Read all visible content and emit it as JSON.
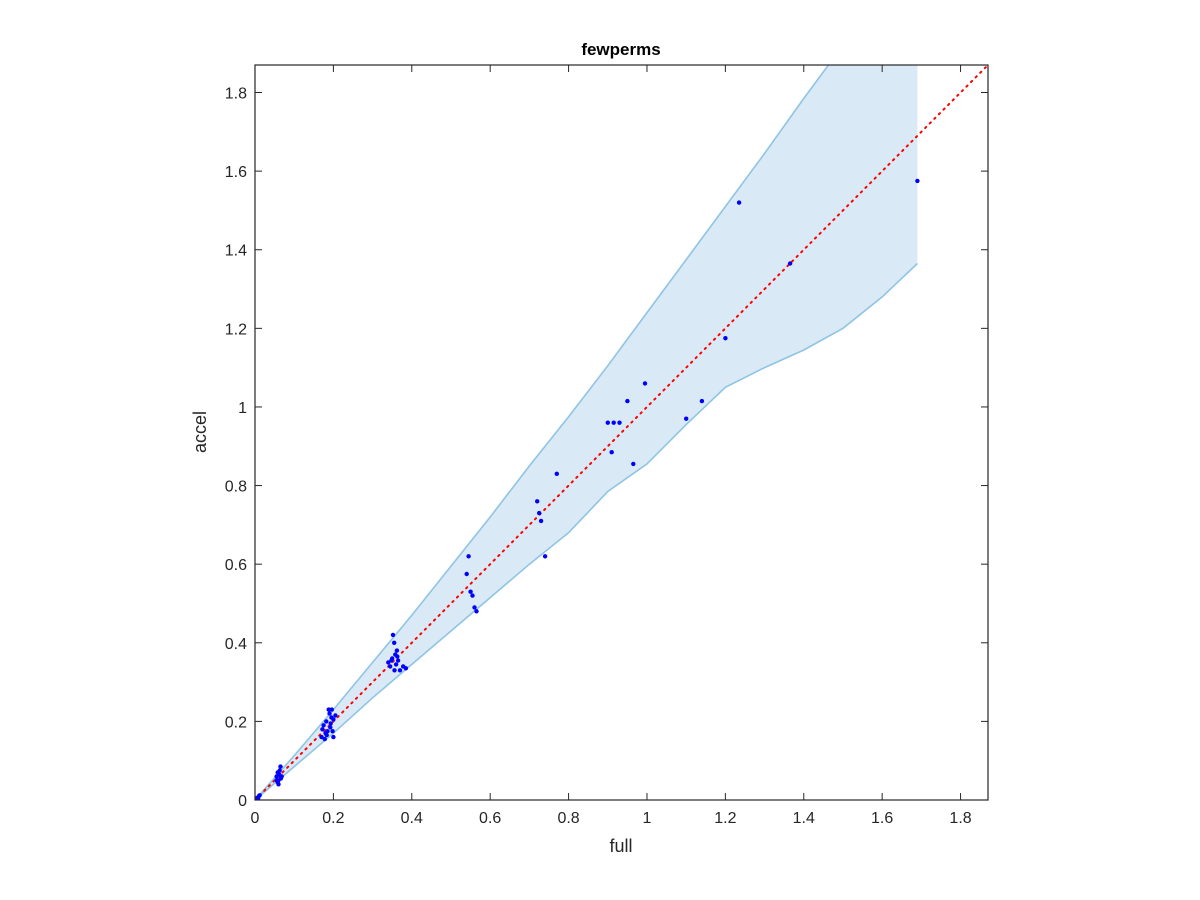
{
  "chart_data": {
    "type": "scatter",
    "title": "fewperms",
    "xlabel": "full",
    "ylabel": "accel",
    "xlim": [
      0,
      1.87
    ],
    "ylim": [
      0,
      1.87
    ],
    "grid": false,
    "x_ticks": [
      0,
      0.2,
      0.4,
      0.6,
      0.8,
      1,
      1.2,
      1.4,
      1.6,
      1.8
    ],
    "x_tick_labels": [
      "0",
      "0.2",
      "0.4",
      "0.6",
      "0.8",
      "1",
      "1.2",
      "1.4",
      "1.6",
      "1.8"
    ],
    "y_ticks": [
      0,
      0.2,
      0.4,
      0.6,
      0.8,
      1,
      1.2,
      1.4,
      1.6,
      1.8
    ],
    "y_tick_labels": [
      "0",
      "0.2",
      "0.4",
      "0.6",
      "0.8",
      "1",
      "1.2",
      "1.4",
      "1.6",
      "1.8"
    ],
    "colors": {
      "points": "#0000ff",
      "band_fill": "#d9e9f5",
      "band_edge": "#8fc4e4",
      "reference_line": "#ff0000",
      "axes": "#262626"
    },
    "reference_line": {
      "style": "dotted",
      "x": [
        0,
        1.87
      ],
      "y": [
        0,
        1.87
      ]
    },
    "band": {
      "upper": [
        [
          0,
          0
        ],
        [
          0.1,
          0.113
        ],
        [
          0.2,
          0.23
        ],
        [
          0.3,
          0.35
        ],
        [
          0.4,
          0.47
        ],
        [
          0.5,
          0.595
        ],
        [
          0.6,
          0.72
        ],
        [
          0.7,
          0.85
        ],
        [
          0.8,
          0.975
        ],
        [
          0.9,
          1.105
        ],
        [
          1.0,
          1.24
        ],
        [
          1.1,
          1.375
        ],
        [
          1.2,
          1.51
        ],
        [
          1.3,
          1.645
        ],
        [
          1.4,
          1.785
        ],
        [
          1.5,
          1.92
        ],
        [
          1.6,
          2.05
        ],
        [
          1.69,
          2.17
        ]
      ],
      "lower": [
        [
          0,
          0
        ],
        [
          0.1,
          0.085
        ],
        [
          0.2,
          0.17
        ],
        [
          0.3,
          0.26
        ],
        [
          0.4,
          0.345
        ],
        [
          0.5,
          0.43
        ],
        [
          0.6,
          0.515
        ],
        [
          0.7,
          0.6
        ],
        [
          0.8,
          0.68
        ],
        [
          0.9,
          0.785
        ],
        [
          1.0,
          0.855
        ],
        [
          1.1,
          0.955
        ],
        [
          1.2,
          1.05
        ],
        [
          1.3,
          1.1
        ],
        [
          1.4,
          1.145
        ],
        [
          1.5,
          1.2
        ],
        [
          1.6,
          1.28
        ],
        [
          1.69,
          1.365
        ]
      ]
    },
    "points": [
      [
        0.005,
        0.005
      ],
      [
        0.01,
        0.01
      ],
      [
        0.008,
        0.003
      ],
      [
        0.012,
        0.012
      ],
      [
        0.055,
        0.06
      ],
      [
        0.058,
        0.07
      ],
      [
        0.06,
        0.05
      ],
      [
        0.062,
        0.065
      ],
      [
        0.065,
        0.085
      ],
      [
        0.06,
        0.04
      ],
      [
        0.058,
        0.045
      ],
      [
        0.066,
        0.055
      ],
      [
        0.063,
        0.075
      ],
      [
        0.055,
        0.05
      ],
      [
        0.068,
        0.06
      ],
      [
        0.17,
        0.16
      ],
      [
        0.175,
        0.19
      ],
      [
        0.18,
        0.17
      ],
      [
        0.182,
        0.2
      ],
      [
        0.185,
        0.175
      ],
      [
        0.19,
        0.22
      ],
      [
        0.192,
        0.185
      ],
      [
        0.195,
        0.21
      ],
      [
        0.2,
        0.16
      ],
      [
        0.2,
        0.205
      ],
      [
        0.178,
        0.155
      ],
      [
        0.188,
        0.23
      ],
      [
        0.196,
        0.23
      ],
      [
        0.172,
        0.18
      ],
      [
        0.183,
        0.165
      ],
      [
        0.193,
        0.195
      ],
      [
        0.198,
        0.175
      ],
      [
        0.205,
        0.215
      ],
      [
        0.34,
        0.35
      ],
      [
        0.345,
        0.34
      ],
      [
        0.35,
        0.36
      ],
      [
        0.352,
        0.42
      ],
      [
        0.355,
        0.4
      ],
      [
        0.358,
        0.37
      ],
      [
        0.36,
        0.345
      ],
      [
        0.362,
        0.38
      ],
      [
        0.365,
        0.355
      ],
      [
        0.37,
        0.33
      ],
      [
        0.378,
        0.34
      ],
      [
        0.385,
        0.335
      ],
      [
        0.356,
        0.33
      ],
      [
        0.348,
        0.355
      ],
      [
        0.363,
        0.365
      ],
      [
        0.54,
        0.575
      ],
      [
        0.545,
        0.62
      ],
      [
        0.55,
        0.53
      ],
      [
        0.555,
        0.52
      ],
      [
        0.56,
        0.49
      ],
      [
        0.565,
        0.48
      ],
      [
        0.72,
        0.76
      ],
      [
        0.725,
        0.73
      ],
      [
        0.73,
        0.71
      ],
      [
        0.74,
        0.62
      ],
      [
        0.77,
        0.83
      ],
      [
        0.9,
        0.96
      ],
      [
        0.91,
        0.885
      ],
      [
        0.915,
        0.96
      ],
      [
        0.93,
        0.96
      ],
      [
        0.95,
        1.015
      ],
      [
        0.965,
        0.855
      ],
      [
        0.995,
        1.06
      ],
      [
        1.1,
        0.97
      ],
      [
        1.14,
        1.015
      ],
      [
        1.2,
        1.175
      ],
      [
        1.235,
        1.52
      ],
      [
        1.365,
        1.365
      ],
      [
        1.69,
        1.575
      ]
    ]
  }
}
